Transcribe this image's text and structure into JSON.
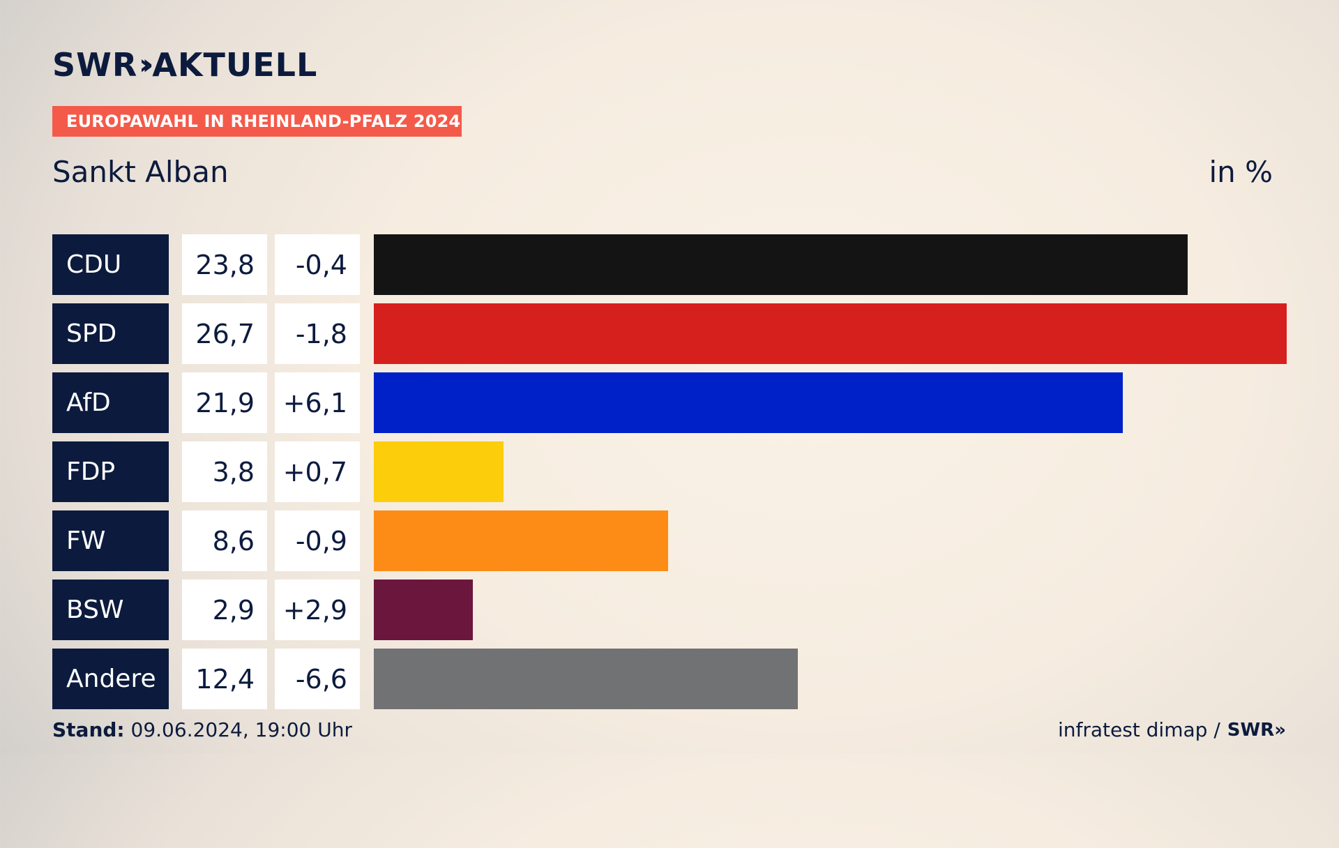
{
  "brand": {
    "name": "SWR",
    "chevrons": "»",
    "product": "AKTUELL"
  },
  "tag": "EUROPAWAHL IN RHEINLAND-PFALZ 2024",
  "title": "Sankt Alban",
  "unit": "in %",
  "footer": {
    "stand_label": "Stand:",
    "stand_value": "09.06.2024, 19:00 Uhr",
    "source": "infratest dimap /",
    "source_brand": "SWR»"
  },
  "colors": {
    "navy": "#0c1b3d",
    "tag": "#f35a4a"
  },
  "chart_data": {
    "type": "bar",
    "orientation": "horizontal",
    "title": "Sankt Alban",
    "unit": "in %",
    "xlim": [
      0,
      26.7
    ],
    "categories": [
      "CDU",
      "SPD",
      "AfD",
      "FDP",
      "FW",
      "BSW",
      "Andere"
    ],
    "values": [
      23.8,
      26.7,
      21.9,
      3.8,
      8.6,
      2.9,
      12.4
    ],
    "value_labels": [
      "23,8",
      "26,7",
      "21,9",
      "3,8",
      "8,6",
      "2,9",
      "12,4"
    ],
    "diff_labels": [
      "-0,4",
      "-1,8",
      "+6,1",
      "+0,7",
      "-0,9",
      "+2,9",
      "-6,6"
    ],
    "bar_colors": [
      "#141414",
      "#d6201e",
      "#0021c7",
      "#fccd0a",
      "#fc8c16",
      "#6b173d",
      "#717274"
    ]
  }
}
